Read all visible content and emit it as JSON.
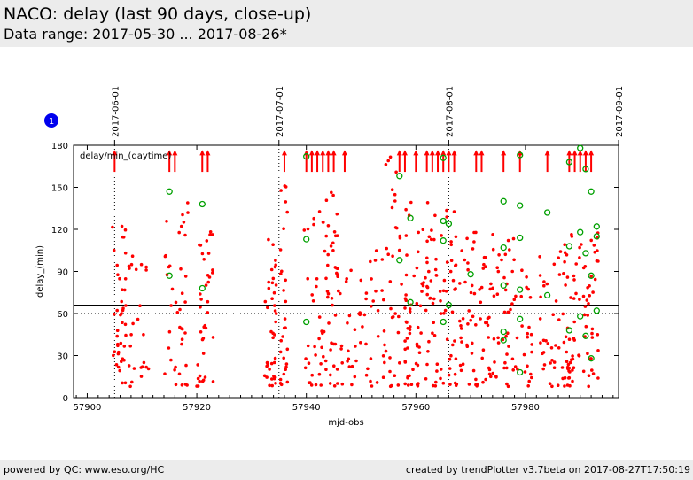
{
  "header": {
    "title": "NACO: delay (last 90 days, close-up)",
    "subtitle": "Data range: 2017-05-30 ... 2017-08-26*"
  },
  "footer": {
    "left": "powered by QC: www.eso.org/HC",
    "right": "created by trendPlotter v3.7beta on 2017-08-27T17:50:19"
  },
  "badge": "1",
  "colors": {
    "points": "#ff0000",
    "circles": "#00a000",
    "lines": "#000000"
  },
  "chart_data": {
    "type": "scatter",
    "xlabel": "mjd-obs",
    "ylabel": "delay_(min)",
    "legend": "delay/min_(daytime)",
    "legend_placement": "top-left",
    "xlim": [
      57897.5,
      57997
    ],
    "ylim": [
      0,
      180
    ],
    "xticks": [
      57900,
      57920,
      57940,
      57960,
      57980
    ],
    "yticks": [
      0,
      30,
      60,
      90,
      120,
      150,
      180
    ],
    "grid": false,
    "date_markers": [
      {
        "label": "2017-06-01",
        "x": 57905
      },
      {
        "label": "2017-07-01",
        "x": 57935
      },
      {
        "label": "2017-08-01",
        "x": 57966
      },
      {
        "label": "2017-09-01",
        "x": 57997
      }
    ],
    "reference_lines": [
      {
        "y": 66,
        "style": "solid"
      },
      {
        "y": 60,
        "style": "dotted"
      }
    ],
    "offscale_marker_x": [
      57905,
      57915,
      57916,
      57921,
      57922,
      57936,
      57940,
      57941,
      57942,
      57943,
      57944,
      57945,
      57947,
      57957,
      57958,
      57960,
      57962,
      57963,
      57964,
      57965,
      57966,
      57967,
      57971,
      57972,
      57976,
      57979,
      57984,
      57988,
      57989,
      57990,
      57991,
      57992
    ],
    "circle_points": [
      {
        "x": 57915,
        "y": 147
      },
      {
        "x": 57915,
        "y": 87
      },
      {
        "x": 57921,
        "y": 138
      },
      {
        "x": 57921,
        "y": 78
      },
      {
        "x": 57940,
        "y": 172
      },
      {
        "x": 57940,
        "y": 113
      },
      {
        "x": 57940,
        "y": 54
      },
      {
        "x": 57957,
        "y": 158
      },
      {
        "x": 57957,
        "y": 98
      },
      {
        "x": 57959,
        "y": 128
      },
      {
        "x": 57959,
        "y": 68
      },
      {
        "x": 57965,
        "y": 171
      },
      {
        "x": 57965,
        "y": 126
      },
      {
        "x": 57965,
        "y": 112
      },
      {
        "x": 57965,
        "y": 54
      },
      {
        "x": 57966,
        "y": 124
      },
      {
        "x": 57966,
        "y": 66
      },
      {
        "x": 57970,
        "y": 88
      },
      {
        "x": 57976,
        "y": 140
      },
      {
        "x": 57976,
        "y": 107
      },
      {
        "x": 57976,
        "y": 80
      },
      {
        "x": 57976,
        "y": 47
      },
      {
        "x": 57976,
        "y": 41
      },
      {
        "x": 57979,
        "y": 173
      },
      {
        "x": 57979,
        "y": 137
      },
      {
        "x": 57979,
        "y": 114
      },
      {
        "x": 57979,
        "y": 77
      },
      {
        "x": 57979,
        "y": 56
      },
      {
        "x": 57979,
        "y": 18
      },
      {
        "x": 57984,
        "y": 132
      },
      {
        "x": 57984,
        "y": 73
      },
      {
        "x": 57988,
        "y": 168
      },
      {
        "x": 57988,
        "y": 108
      },
      {
        "x": 57988,
        "y": 48
      },
      {
        "x": 57990,
        "y": 178
      },
      {
        "x": 57990,
        "y": 118
      },
      {
        "x": 57990,
        "y": 58
      },
      {
        "x": 57991,
        "y": 163
      },
      {
        "x": 57991,
        "y": 103
      },
      {
        "x": 57991,
        "y": 44
      },
      {
        "x": 57992,
        "y": 147
      },
      {
        "x": 57992,
        "y": 87
      },
      {
        "x": 57992,
        "y": 28
      },
      {
        "x": 57993,
        "y": 122
      },
      {
        "x": 57993,
        "y": 115
      },
      {
        "x": 57993,
        "y": 62
      }
    ],
    "clusters": [
      {
        "x": [
          57904.6,
          57907.2
        ],
        "y_max": 135,
        "n": 42
      },
      {
        "x": [
          57907.6,
          57911.2
        ],
        "y_max": 105,
        "n": 24
      },
      {
        "x": [
          57914.0,
          57918.4
        ],
        "y_max": 140,
        "n": 40
      },
      {
        "x": [
          57920.0,
          57923.0
        ],
        "y_max": 120,
        "n": 38
      },
      {
        "x": [
          57932.4,
          57934.6
        ],
        "y_max": 125,
        "n": 40
      },
      {
        "x": [
          57935.2,
          57936.6
        ],
        "y_max": 158,
        "n": 28
      },
      {
        "x": [
          57939.6,
          57946.6
        ],
        "y_max": 150,
        "n": 80
      },
      {
        "x": [
          57947.2,
          57953.2
        ],
        "y_max": 105,
        "n": 40
      },
      {
        "x": [
          57953.6,
          57957.4
        ],
        "y_max": 175,
        "n": 40
      },
      {
        "x": [
          57958.0,
          57964.0
        ],
        "y_max": 145,
        "n": 90
      },
      {
        "x": [
          57964.2,
          57967.6
        ],
        "y_max": 140,
        "n": 40
      },
      {
        "x": [
          57968.0,
          57974.4
        ],
        "y_max": 120,
        "n": 70
      },
      {
        "x": [
          57974.6,
          57978.6
        ],
        "y_max": 115,
        "n": 40
      },
      {
        "x": [
          57979.0,
          57981.4
        ],
        "y_max": 95,
        "n": 20
      },
      {
        "x": [
          57982.6,
          57986.4
        ],
        "y_max": 105,
        "n": 32
      },
      {
        "x": [
          57986.6,
          57993.4
        ],
        "y_max": 120,
        "n": 90
      }
    ]
  }
}
